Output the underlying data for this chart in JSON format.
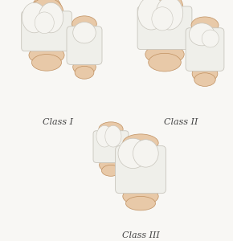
{
  "background_color": "#f8f7f4",
  "tooth_white": "#efefea",
  "tooth_light": "#f5f4f0",
  "tooth_shadow": "#c8c5bc",
  "tooth_mid": "#e0ddd6",
  "gum_light": "#e8c9a8",
  "gum_color": "#d4a87a",
  "gum_shadow": "#c09060",
  "label_color": "#444444",
  "label_fontsize": 8.0,
  "classes": [
    "Class I",
    "Class II",
    "Class III"
  ],
  "figsize": [
    2.9,
    3.0
  ],
  "dpi": 100
}
